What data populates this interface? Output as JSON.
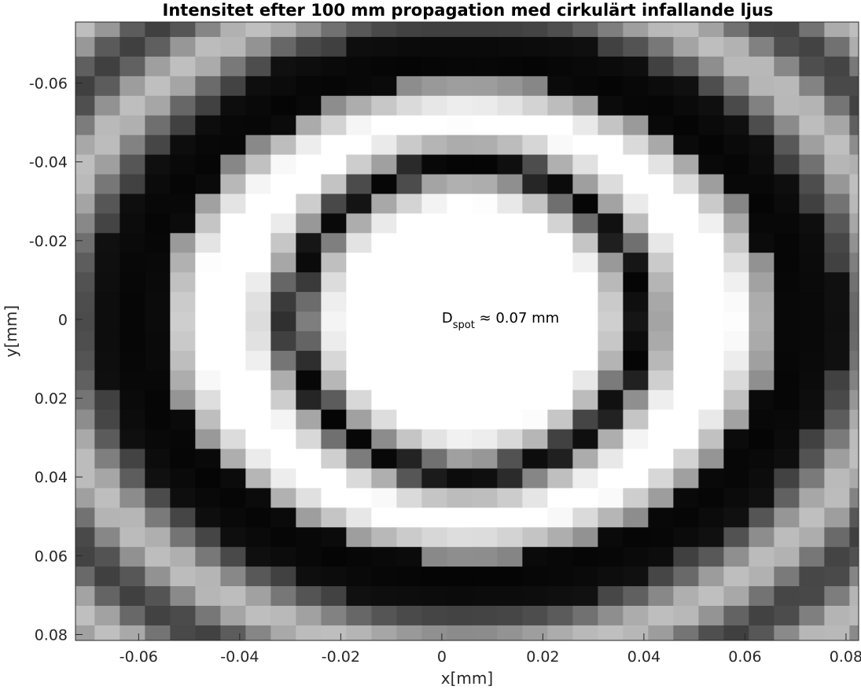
{
  "chart_data": {
    "type": "heatmap",
    "title": "Intensitet efter 100 mm propagation med cirkulärt infallande ljus",
    "xlabel": "x[mm]",
    "ylabel": "y[mm]",
    "xlim": [
      -0.0725,
      0.0825
    ],
    "ylim": [
      -0.0755,
      0.0815
    ],
    "y_reversed": true,
    "colormap": "gray",
    "x_ticks": [
      -0.06,
      -0.04,
      -0.02,
      0,
      0.02,
      0.04,
      0.06,
      0.08
    ],
    "x_tick_labels": [
      "-0.06",
      "-0.04",
      "-0.02",
      "0",
      "0.02",
      "0.04",
      "0.06",
      "0.08"
    ],
    "y_ticks": [
      -0.06,
      -0.04,
      -0.02,
      0,
      0.02,
      0.04,
      0.06,
      0.08
    ],
    "y_tick_labels": [
      "-0.06",
      "-0.04",
      "-0.02",
      "0",
      "0.02",
      "0.04",
      "0.06",
      "0.08"
    ],
    "grid": {
      "x_start": -0.0712,
      "x_step": 0.00498,
      "nx": 40,
      "y_start": -0.0742,
      "y_step": 0.00498,
      "ny": 32,
      "x_center": 0.005,
      "y_center": 0.0
    },
    "pattern": {
      "description_free": true,
      "inner_ring": {
        "rx": 0.0345,
        "ry": 0.0395,
        "width": 0.0035,
        "halo": 0.0052
      },
      "outer_ring": {
        "rx": 0.0655,
        "ry": 0.0655,
        "width": 0.0095
      },
      "outer_halo_width": 0.011,
      "edge_gray": 0.5
    },
    "annotation": {
      "main": "D",
      "sub": "spot",
      "rest": " ≈ 0.07 mm",
      "x": 0.0,
      "y": 0.0
    }
  }
}
